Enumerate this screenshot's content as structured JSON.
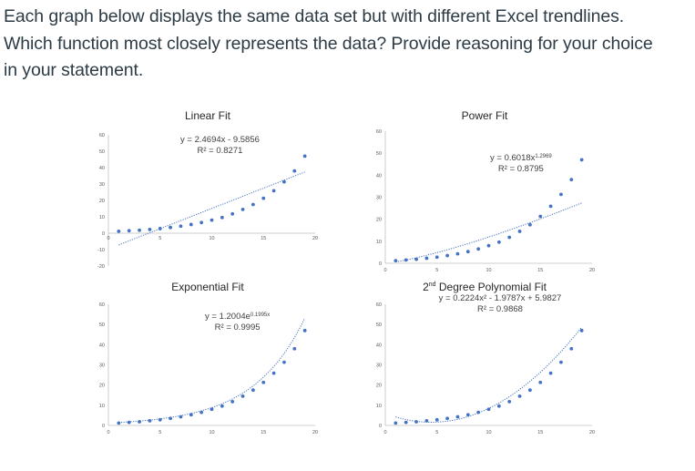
{
  "question": {
    "line1": "Each graph below displays the same data set but with different Excel trendlines.",
    "line2": "Which function most closely represents the data? Provide reasoning for your choice",
    "line3": "in your statement."
  },
  "colors": {
    "marker": "#4472c4",
    "trendline": "#4472c4",
    "axis": "#bfbfbf",
    "text": "#2d3b45"
  },
  "charts": {
    "linear": {
      "title": "Linear Fit",
      "equation": "y = 2.4694x - 9.5856",
      "r2": "R² = 0.8271",
      "xticks": [
        "0",
        "5",
        "10",
        "15",
        "20"
      ],
      "yticks": [
        "60",
        "50",
        "40",
        "30",
        "20",
        "10",
        "0",
        "-10",
        "-20"
      ]
    },
    "power": {
      "title": "Power Fit",
      "equation_base": "y = 0.6018x",
      "equation_exp": "1.2969",
      "r2": "R² = 0.8795",
      "xticks": [
        "0",
        "5",
        "10",
        "15",
        "20"
      ],
      "yticks": [
        "60",
        "50",
        "40",
        "30",
        "20",
        "10",
        "0"
      ]
    },
    "exponential": {
      "title": "Exponential Fit",
      "equation_base": "y = 1.2004e",
      "equation_exp": "0.1995x",
      "r2": "R² = 0.9995",
      "xticks": [
        "0",
        "5",
        "10",
        "15",
        "20"
      ],
      "yticks": [
        "60",
        "50",
        "40",
        "30",
        "20",
        "10",
        "0"
      ]
    },
    "polynomial": {
      "title_main": "2",
      "title_sup": "nd",
      "title_rest": " Degree Polynomial Fit",
      "equation": "y = 0.2224x² - 1.9787x + 5.9827",
      "r2": "R² = 0.9868",
      "xticks": [
        "0",
        "5",
        "10",
        "15",
        "20"
      ],
      "yticks": [
        "60",
        "50",
        "40",
        "30",
        "20",
        "10",
        "0"
      ]
    }
  },
  "chart_data": [
    {
      "type": "scatter",
      "title": "Linear Fit",
      "x": [
        1,
        2,
        3,
        4,
        5,
        6,
        7,
        8,
        9,
        10,
        11,
        12,
        13,
        14,
        15,
        16,
        17,
        18,
        19
      ],
      "y": [
        1.2,
        1.5,
        1.8,
        2.3,
        2.8,
        3.5,
        4.3,
        5.3,
        6.5,
        8.0,
        9.6,
        11.8,
        14.5,
        17.5,
        21.3,
        25.9,
        31.3,
        38.0,
        47.0
      ],
      "trendline": {
        "kind": "linear",
        "a": 2.4694,
        "b": -9.5856
      },
      "xlim": [
        0,
        20
      ],
      "ylim": [
        -20,
        60
      ],
      "grid": false
    },
    {
      "type": "scatter",
      "title": "Power Fit",
      "x": [
        1,
        2,
        3,
        4,
        5,
        6,
        7,
        8,
        9,
        10,
        11,
        12,
        13,
        14,
        15,
        16,
        17,
        18,
        19
      ],
      "y": [
        1.2,
        1.5,
        1.8,
        2.3,
        2.8,
        3.5,
        4.3,
        5.3,
        6.5,
        8.0,
        9.6,
        11.8,
        14.5,
        17.5,
        21.3,
        25.9,
        31.3,
        38.0,
        47.0
      ],
      "trendline": {
        "kind": "power",
        "a": 0.6018,
        "b": 1.2969
      },
      "xlim": [
        0,
        20
      ],
      "ylim": [
        0,
        60
      ],
      "grid": false
    },
    {
      "type": "scatter",
      "title": "Exponential Fit",
      "x": [
        1,
        2,
        3,
        4,
        5,
        6,
        7,
        8,
        9,
        10,
        11,
        12,
        13,
        14,
        15,
        16,
        17,
        18,
        19
      ],
      "y": [
        1.2,
        1.5,
        1.8,
        2.3,
        2.8,
        3.5,
        4.3,
        5.3,
        6.5,
        8.0,
        9.6,
        11.8,
        14.5,
        17.5,
        21.3,
        25.9,
        31.3,
        38.0,
        47.0
      ],
      "trendline": {
        "kind": "exponential",
        "a": 1.2004,
        "b": 0.1995
      },
      "xlim": [
        0,
        20
      ],
      "ylim": [
        0,
        60
      ],
      "grid": false
    },
    {
      "type": "scatter",
      "title": "2nd Degree Polynomial Fit",
      "x": [
        1,
        2,
        3,
        4,
        5,
        6,
        7,
        8,
        9,
        10,
        11,
        12,
        13,
        14,
        15,
        16,
        17,
        18,
        19
      ],
      "y": [
        1.2,
        1.5,
        1.8,
        2.3,
        2.8,
        3.5,
        4.3,
        5.3,
        6.5,
        8.0,
        9.6,
        11.8,
        14.5,
        17.5,
        21.3,
        25.9,
        31.3,
        38.0,
        47.0
      ],
      "trendline": {
        "kind": "poly2",
        "a": 0.2224,
        "b": -1.9787,
        "c": 5.9827
      },
      "xlim": [
        0,
        20
      ],
      "ylim": [
        0,
        60
      ],
      "grid": false
    }
  ]
}
